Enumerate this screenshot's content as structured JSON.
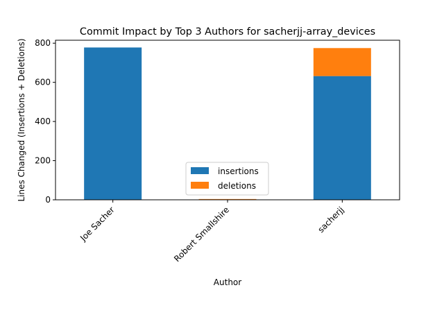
{
  "chart_data": {
    "type": "bar",
    "stacked": true,
    "title": "Commit Impact by Top 3 Authors for sacherjj-array_devices",
    "xlabel": "Author",
    "ylabel": "Lines Changed (Insertions + Deletions)",
    "categories": [
      "Joe Sacher",
      "Robert Smallshire",
      "sacherjj"
    ],
    "series": [
      {
        "name": "insertions",
        "values": [
          778,
          2,
          632
        ],
        "color": "#1f77b4"
      },
      {
        "name": "deletions",
        "values": [
          0,
          2,
          143
        ],
        "color": "#ff7f0e"
      }
    ],
    "ylim": [
      0,
      815
    ],
    "yticks": [
      0,
      200,
      400,
      600,
      800
    ],
    "legend": {
      "position": "lower-center"
    }
  }
}
